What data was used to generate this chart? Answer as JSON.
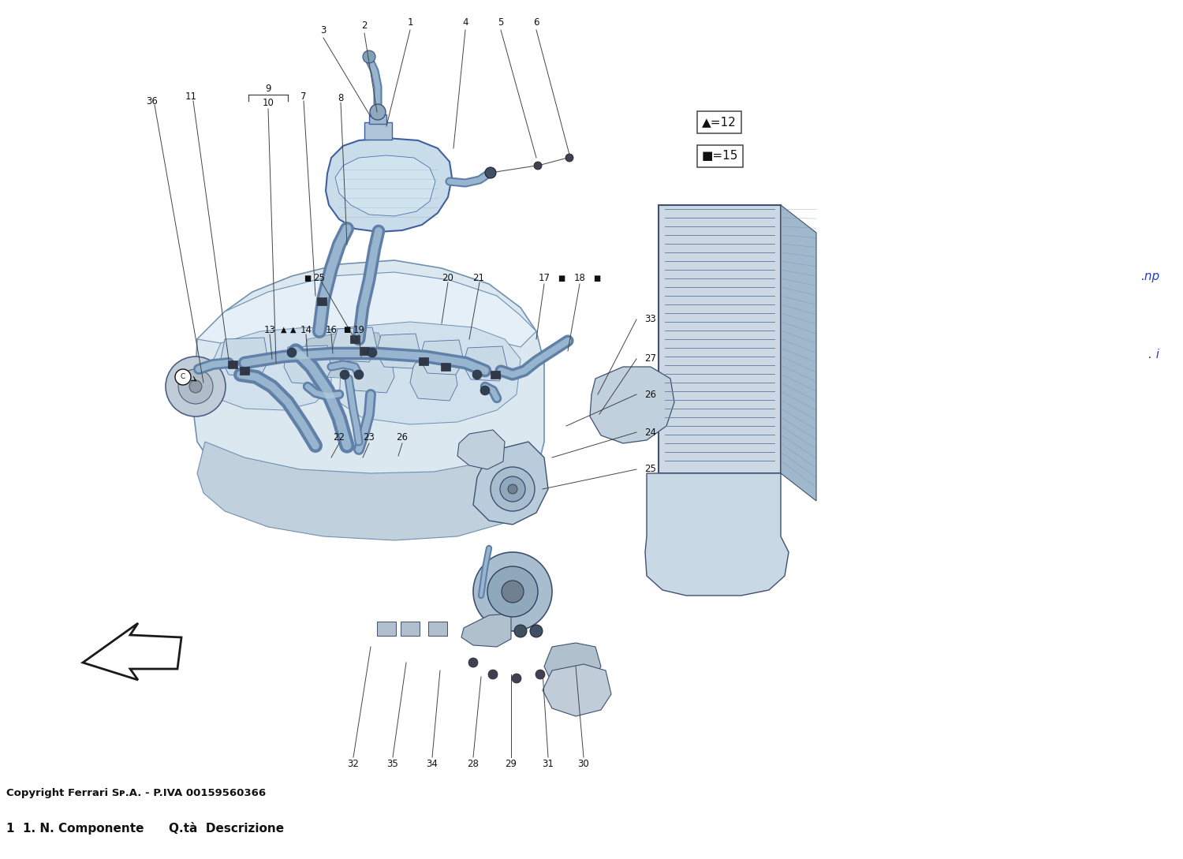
{
  "figsize": [
    15.0,
    10.89
  ],
  "dpi": 100,
  "background_color": "#ffffff",
  "copyright_text": "Copyright Ferrari Sᴘ.A. - P.IVA 00159560366",
  "footer_text": "1  1. N. Componente      Q.tà  Descrizione",
  "right_link1": ".np",
  "right_link2": ". i",
  "legend_triangle": "▲=12",
  "legend_square": "■=15",
  "pipe_color": "#8aabcc",
  "pipe_dark": "#6080a8",
  "pipe_light": "#b0cce0",
  "engine_fill": "#dce8f0",
  "engine_edge": "#7090b0",
  "res_fill": "#c8dcea",
  "rad_fill": "#ccd8e4",
  "rad_dark": "#a0b8cc",
  "text_color": "#111111",
  "label_fontsize": 8.5,
  "small_fontsize": 7.5
}
